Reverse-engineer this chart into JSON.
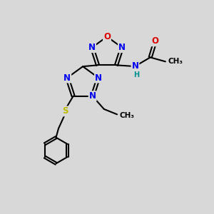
{
  "bg_color": "#d8d8d8",
  "bond_color": "#000000",
  "bond_width": 1.5,
  "atom_colors": {
    "N": "#0000ee",
    "O": "#dd0000",
    "S": "#bbbb00",
    "C": "#000000",
    "H": "#009090"
  },
  "font_size_atom": 8.5,
  "font_size_small": 7.5
}
